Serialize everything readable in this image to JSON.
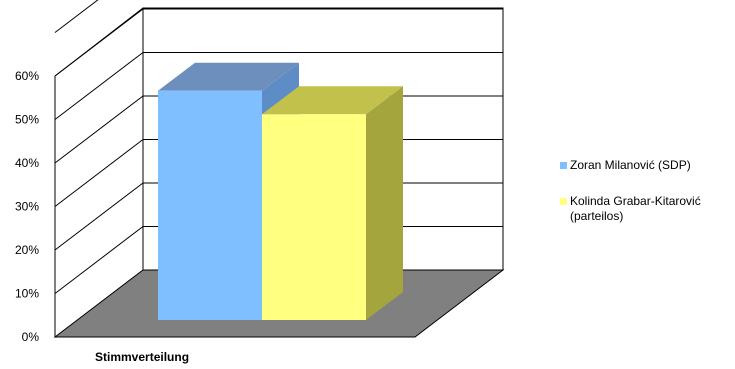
{
  "chart_data": {
    "type": "bar",
    "title": "",
    "xlabel": "",
    "ylabel": "",
    "categories": [
      "Stimmverteilung"
    ],
    "series": [
      {
        "name": "Zoran Milanović (SDP)",
        "values": [
          52.7
        ],
        "color": "#80BFFF",
        "top_color": "#6D8FBD",
        "side_color": "#5E8CC6"
      },
      {
        "name": "Kolinda Grabar-Kitarović (parteilos)",
        "values": [
          47.3
        ],
        "color": "#FFFF80",
        "top_color": "#C1C14B",
        "side_color": "#A5A53E"
      }
    ],
    "ylim": [
      0,
      60
    ],
    "yticks": [
      "0%",
      "10%",
      "20%",
      "30%",
      "40%",
      "50%",
      "60%"
    ],
    "grid": true,
    "legend": "right",
    "colors": {
      "floor": "#808080",
      "wall": "#ffffff",
      "lines": "#000000"
    }
  }
}
